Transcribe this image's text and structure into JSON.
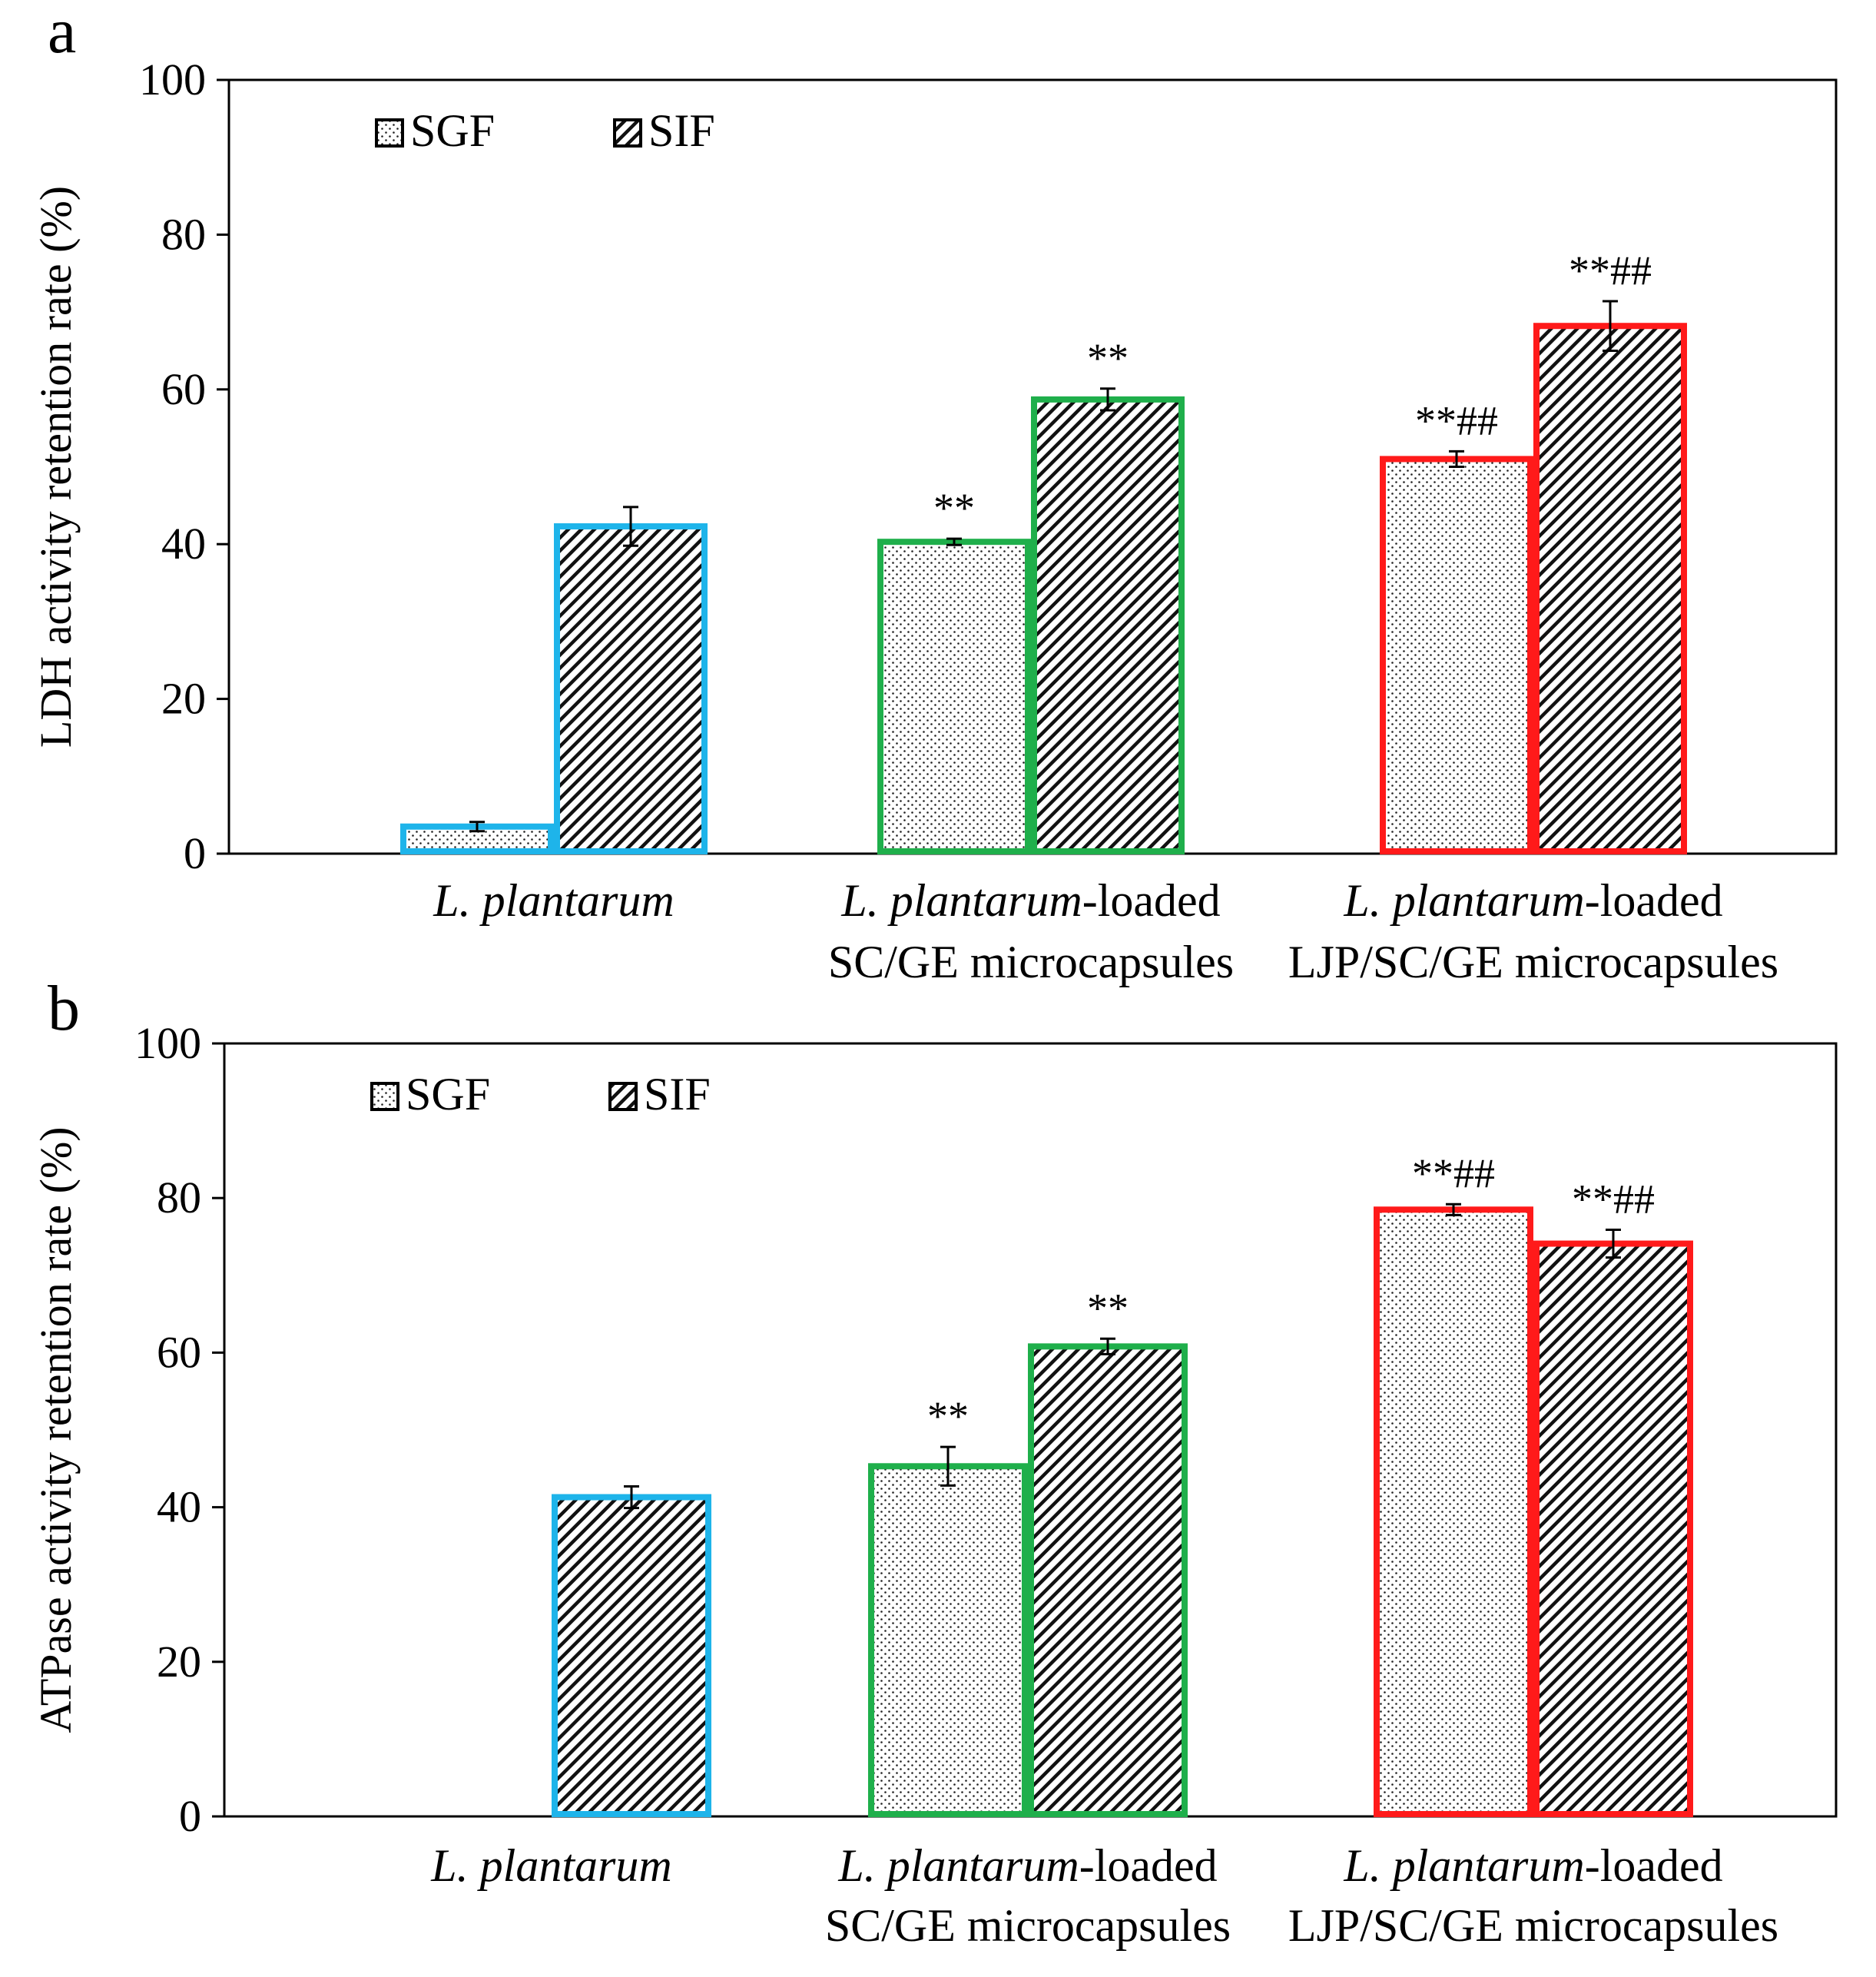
{
  "chart_data": [
    {
      "panel": "a",
      "type": "bar",
      "ylabel": "LDH activity retention rate (%)",
      "ylim": [
        0,
        100
      ],
      "yticks": [
        0,
        20,
        40,
        60,
        80,
        100
      ],
      "legend": {
        "position": "top-left",
        "entries": [
          "SGF",
          "SIF"
        ]
      },
      "groups": [
        {
          "label_italic": "L. plantarum",
          "label_rest": "",
          "line2": "",
          "color": "#1eb4ea",
          "bars": [
            {
              "series": "SGF",
              "value": 3.5,
              "err": 0.6,
              "sig": ""
            },
            {
              "series": "SIF",
              "value": 42.3,
              "err": 2.5,
              "sig": ""
            }
          ]
        },
        {
          "label_italic": "L. plantarum",
          "label_rest": "-loaded",
          "line2": "SC/GE microcapsules",
          "color": "#1faf4b",
          "bars": [
            {
              "series": "SGF",
              "value": 40.3,
              "err": 0.4,
              "sig": "**"
            },
            {
              "series": "SIF",
              "value": 58.7,
              "err": 1.4,
              "sig": "**"
            }
          ]
        },
        {
          "label_italic": "L. plantarum",
          "label_rest": "-loaded",
          "line2": "LJP/SC/GE microcapsules",
          "color": "#ff1a1a",
          "bars": [
            {
              "series": "SGF",
              "value": 51.0,
              "err": 1.0,
              "sig": "**##"
            },
            {
              "series": "SIF",
              "value": 68.2,
              "err": 3.2,
              "sig": "**##"
            }
          ]
        }
      ]
    },
    {
      "panel": "b",
      "type": "bar",
      "ylabel": "ATPase activity retention rate (%)",
      "ylim": [
        0,
        100
      ],
      "yticks": [
        0,
        20,
        40,
        60,
        80,
        100
      ],
      "legend": {
        "position": "top-left",
        "entries": [
          "SGF",
          "SIF"
        ]
      },
      "groups": [
        {
          "label_italic": "L. plantarum",
          "label_rest": "",
          "line2": "",
          "color": "#1eb4ea",
          "bars": [
            {
              "series": "SGF",
              "value": 0,
              "err": 0,
              "sig": ""
            },
            {
              "series": "SIF",
              "value": 41.3,
              "err": 1.4,
              "sig": ""
            }
          ]
        },
        {
          "label_italic": "L. plantarum",
          "label_rest": "-loaded",
          "line2": "SC/GE microcapsules",
          "color": "#1faf4b",
          "bars": [
            {
              "series": "SGF",
              "value": 45.3,
              "err": 2.5,
              "sig": "**"
            },
            {
              "series": "SIF",
              "value": 60.8,
              "err": 1.0,
              "sig": "**"
            }
          ]
        },
        {
          "label_italic": "L. plantarum",
          "label_rest": "-loaded",
          "line2": "LJP/SC/GE microcapsules",
          "color": "#ff1a1a",
          "bars": [
            {
              "series": "SGF",
              "value": 78.5,
              "err": 0.7,
              "sig": "**##"
            },
            {
              "series": "SIF",
              "value": 74.1,
              "err": 1.8,
              "sig": "**##"
            }
          ]
        }
      ]
    }
  ]
}
